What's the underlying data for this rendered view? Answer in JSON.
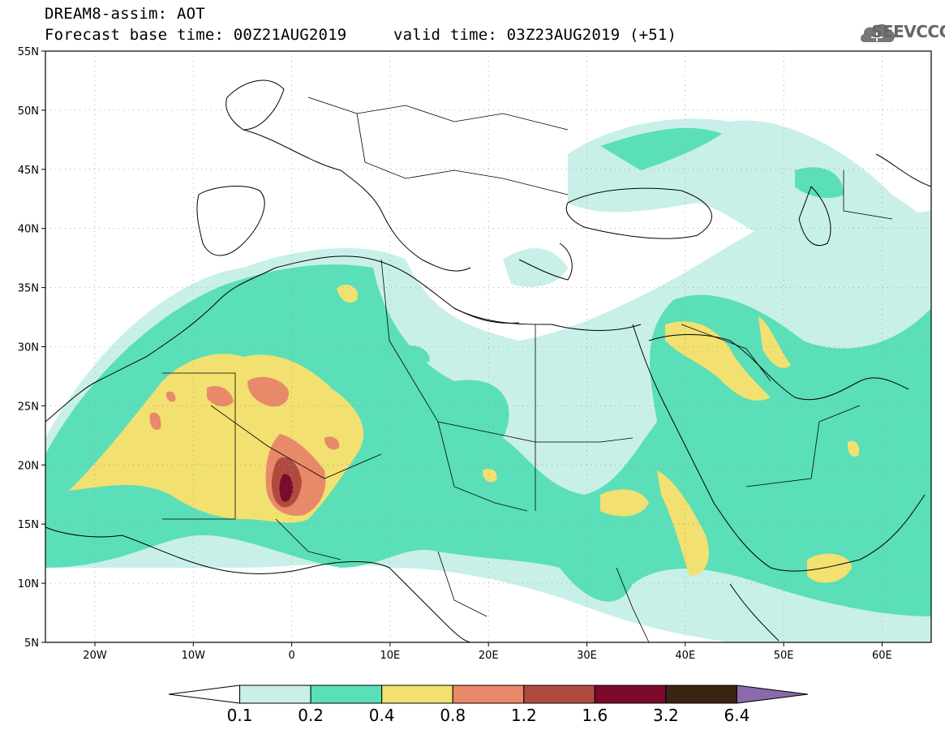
{
  "header": {
    "line1": "DREAM8-assim: AOT",
    "line2": "Forecast base time: 00Z21AUG2019",
    "line2b": "valid time: 03Z23AUG2019 (+51)",
    "logo_text": "SEEVCCC",
    "logo_icon": "cloud-icon"
  },
  "axes": {
    "lat_labels": [
      "55N",
      "50N",
      "45N",
      "40N",
      "35N",
      "30N",
      "25N",
      "20N",
      "15N",
      "10N",
      "5N"
    ],
    "lon_labels": [
      "20W",
      "10W",
      "0",
      "10E",
      "20E",
      "30E",
      "40E",
      "50E",
      "60E"
    ]
  },
  "colorbar": {
    "labels": [
      "0.1",
      "0.2",
      "0.4",
      "0.8",
      "1.2",
      "1.6",
      "3.2",
      "6.4"
    ],
    "colors": [
      "#ffffff",
      "#c8f0e8",
      "#5adfb8",
      "#f2e070",
      "#e8896a",
      "#b04a3e",
      "#7c0a2a",
      "#3a2412",
      "#8a6aa8"
    ]
  },
  "colors": {
    "c1": "#c8f0e8",
    "c2": "#5adfb8",
    "c3": "#f2e070",
    "c4": "#e8896a",
    "c5": "#b04a3e",
    "c6": "#7c0a2a"
  }
}
